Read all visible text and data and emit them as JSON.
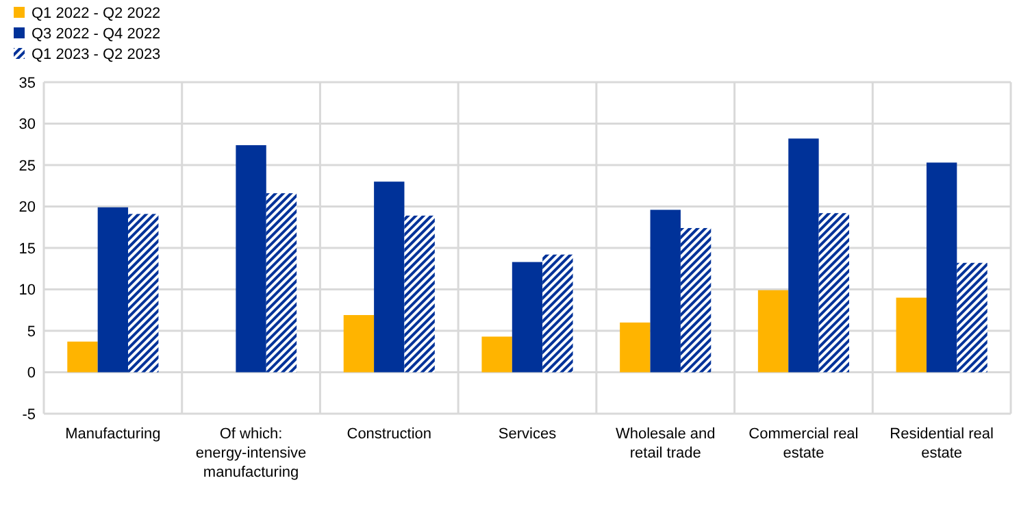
{
  "chart_data": {
    "type": "bar",
    "categories": [
      "Manufacturing",
      "Of which: energy-intensive manufacturing",
      "Construction",
      "Services",
      "Wholesale and retail trade",
      "Commercial real estate",
      "Residential real estate"
    ],
    "series": [
      {
        "name": "Q1 2022 - Q2 2022",
        "color": "#ffb400",
        "values": [
          3.7,
          null,
          6.9,
          4.3,
          6.0,
          9.9,
          9.0
        ]
      },
      {
        "name": "Q3 2022 - Q4 2022",
        "color": "#003299",
        "values": [
          19.9,
          27.4,
          23.0,
          13.3,
          19.6,
          28.2,
          25.3
        ]
      },
      {
        "name": "Q1 2023 - Q2 2023",
        "color": "#003299",
        "values": [
          19.1,
          21.6,
          18.9,
          14.2,
          17.4,
          19.2,
          13.2
        ]
      }
    ],
    "ylim": [
      -5,
      35
    ],
    "yticks": [
      -5,
      0,
      5,
      10,
      15,
      20,
      25,
      30,
      35
    ],
    "grid": true,
    "legend": "top left"
  }
}
